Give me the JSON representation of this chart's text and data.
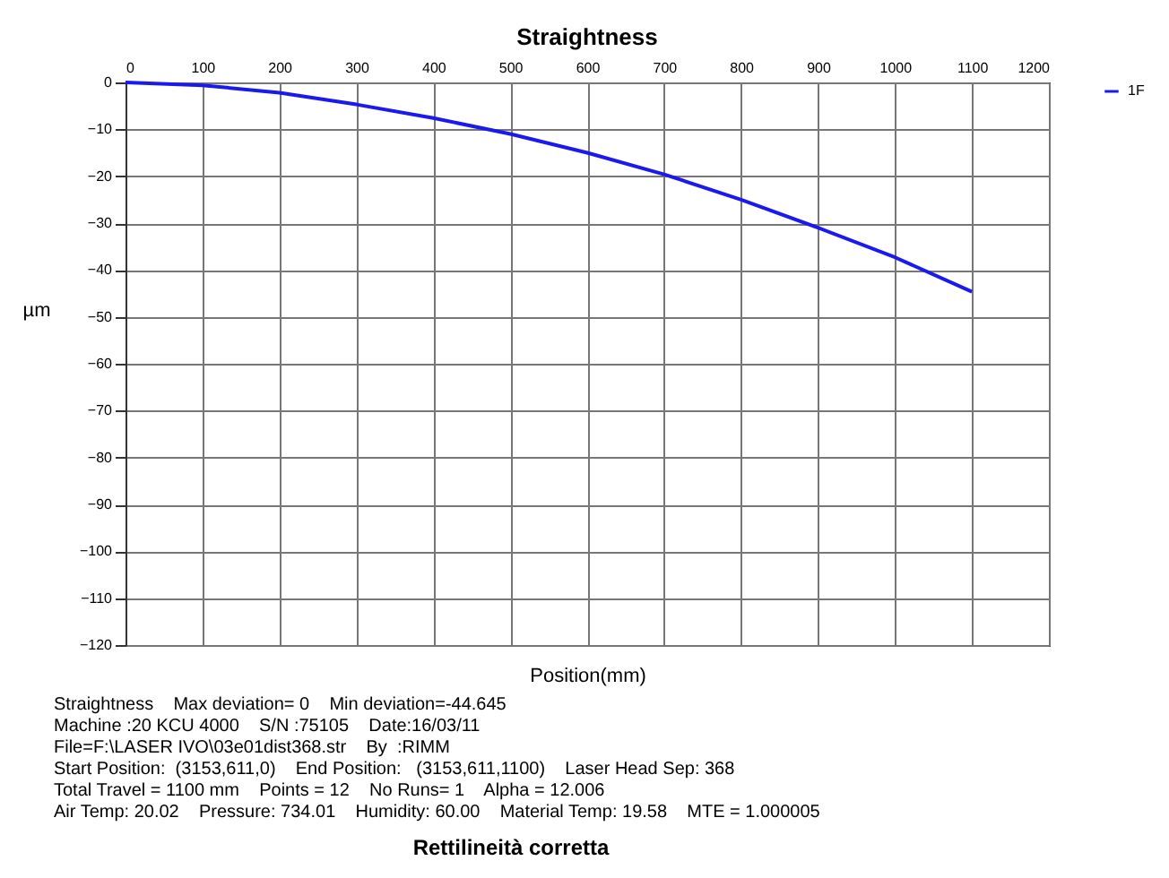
{
  "chart_data": {
    "type": "line",
    "title": "Straightness",
    "xlabel": "Position(mm)",
    "ylabel": "µm",
    "x": [
      0,
      100,
      200,
      300,
      400,
      500,
      600,
      700,
      800,
      900,
      1000,
      1100
    ],
    "series": [
      {
        "name": "1F",
        "color": "#1a1aee",
        "values": [
          0,
          -0.6,
          -2.2,
          -4.7,
          -7.6,
          -11,
          -15,
          -19.6,
          -25,
          -31,
          -37.3,
          -44.645
        ]
      }
    ],
    "xlim": [
      0,
      1200
    ],
    "xticks": [
      0,
      100,
      200,
      300,
      400,
      500,
      600,
      700,
      800,
      900,
      1000,
      1100,
      1200
    ],
    "ylim": [
      -120,
      0
    ],
    "yticks": [
      0,
      -10,
      -20,
      -30,
      -40,
      -50,
      -60,
      -70,
      -80,
      -90,
      -100,
      -110,
      -120
    ],
    "grid": true,
    "legend": "right",
    "marker": "none",
    "line_style": "solid",
    "annotations": [
      "Straightness    Max deviation= 0    Min deviation=-44.645",
      "Machine :20 KCU 4000    S/N :75105    Date:16/03/11",
      "File=F:\\LASER IVO\\03e01dist368.str    By  :RIMM",
      "Start Position:  (3153,611,0)    End Position:   (3153,611,1100)    Laser Head Sep: 368",
      "Total Travel = 1100 mm    Points = 12    No Runs= 1    Alpha = 12.006",
      "Air Temp: 20.02    Pressure: 734.01    Humidity: 60.00    Material Temp: 19.58    MTE = 1.000005",
      "Rettilineità corretta"
    ]
  }
}
